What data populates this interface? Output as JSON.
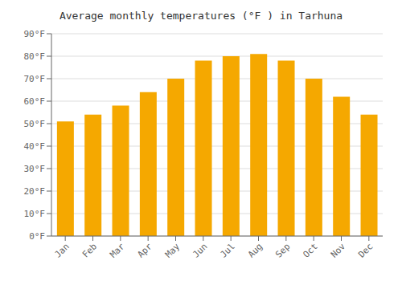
{
  "chart_data": {
    "type": "bar",
    "title": "Average monthly temperatures (°F ) in Tarhuna",
    "categories": [
      "Jan",
      "Feb",
      "Mar",
      "Apr",
      "May",
      "Jun",
      "Jul",
      "Aug",
      "Sep",
      "Oct",
      "Nov",
      "Dec"
    ],
    "values": [
      51,
      54,
      58,
      64,
      70,
      78,
      80,
      81,
      78,
      70,
      62,
      54
    ],
    "color": "#F5A800",
    "ylim": [
      0,
      90
    ],
    "yticks": [
      {
        "value": 0,
        "label": "0°F"
      },
      {
        "value": 10,
        "label": "10°F"
      },
      {
        "value": 20,
        "label": "20°F"
      },
      {
        "value": 30,
        "label": "30°F"
      },
      {
        "value": 40,
        "label": "40°F"
      },
      {
        "value": 50,
        "label": "50°F"
      },
      {
        "value": 60,
        "label": "60°F"
      },
      {
        "value": 70,
        "label": "70°F"
      },
      {
        "value": 80,
        "label": "80°F"
      },
      {
        "value": 90,
        "label": "90°F"
      }
    ],
    "grid": true
  }
}
